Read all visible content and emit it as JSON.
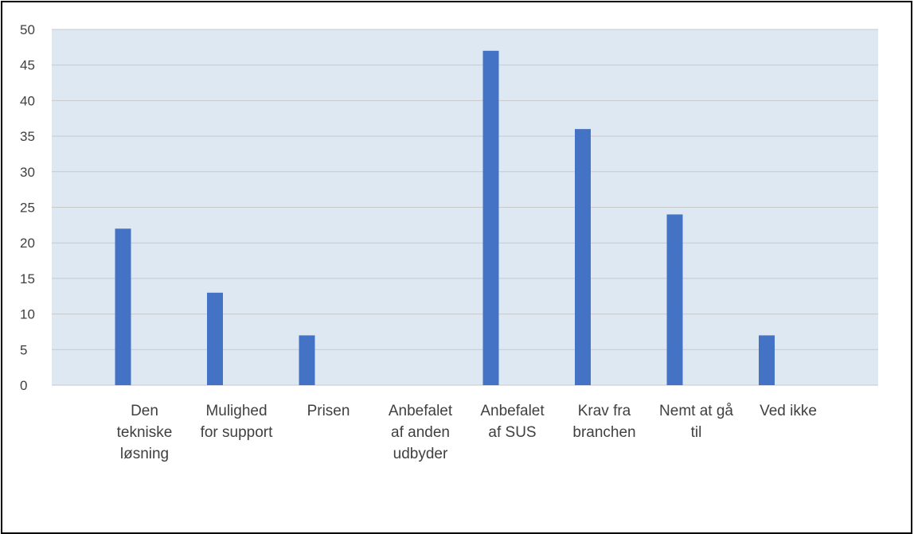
{
  "chart_data": {
    "type": "bar",
    "categories": [
      [
        "Den",
        "tekniske",
        "løsning"
      ],
      [
        "Mulighed",
        "for support"
      ],
      [
        "Prisen"
      ],
      [
        "Anbefalet",
        "af anden",
        "udbyder"
      ],
      [
        "Anbefalet",
        "af SUS"
      ],
      [
        "Krav fra",
        "branchen"
      ],
      [
        "Nemt at gå",
        "til"
      ],
      [
        "Ved ikke"
      ]
    ],
    "values": [
      22,
      13,
      7,
      0,
      47,
      36,
      24,
      7
    ],
    "ylim": [
      0,
      50
    ],
    "yticks": [
      0,
      5,
      10,
      15,
      20,
      25,
      30,
      35,
      40,
      45,
      50
    ],
    "grid": true,
    "colors": {
      "bar": "#4472C4",
      "plot_bg": "#DEE8F3",
      "grid": "#C9C9C9"
    }
  }
}
